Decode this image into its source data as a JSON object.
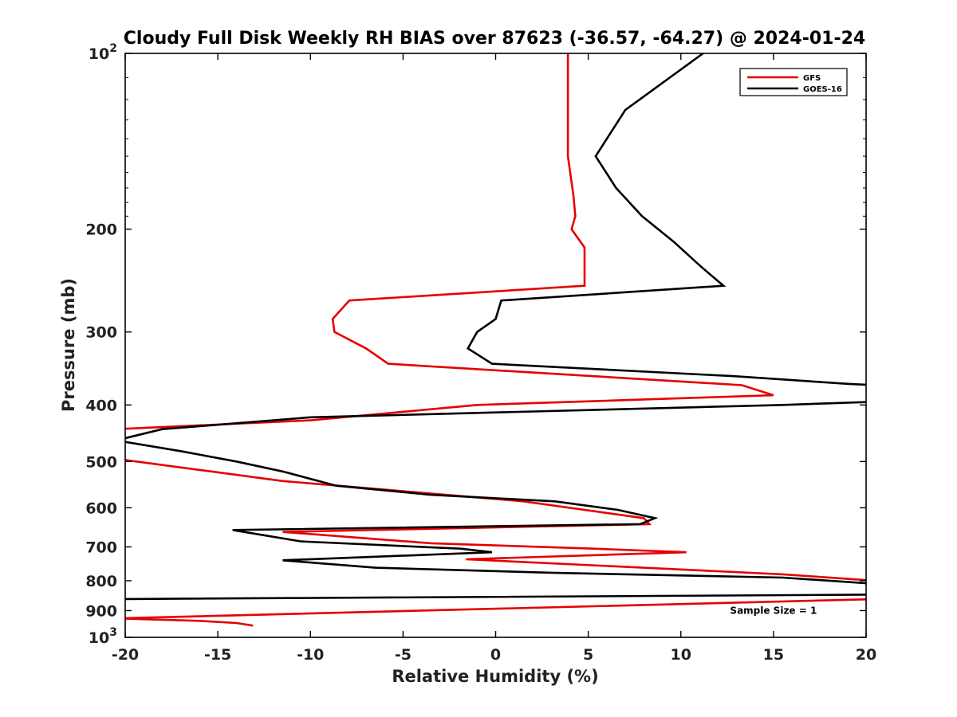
{
  "chart_data": {
    "type": "line",
    "title": "Cloudy Full Disk Weekly RH BIAS over 87623 (-36.57, -64.27) @ 2024-01-24",
    "xlabel": "Relative Humidity (%)",
    "ylabel": "Pressure (mb)",
    "xlim": [
      -20,
      20
    ],
    "ylim": [
      100,
      1000
    ],
    "y_scale": "log",
    "y_reversed": true,
    "x_ticks": [
      -20,
      -15,
      -10,
      -5,
      0,
      5,
      10,
      15,
      20
    ],
    "x_tick_labels": [
      "-20",
      "-15",
      "-10",
      "-5",
      "0",
      "5",
      "10",
      "15",
      "20"
    ],
    "y_ticks": [
      100,
      200,
      300,
      400,
      500,
      600,
      700,
      800,
      900,
      1000
    ],
    "y_tick_labels": [
      {
        "base": "10",
        "exp": "2"
      },
      {
        "base": "200",
        "exp": ""
      },
      {
        "base": "300",
        "exp": ""
      },
      {
        "base": "400",
        "exp": ""
      },
      {
        "base": "500",
        "exp": ""
      },
      {
        "base": "600",
        "exp": ""
      },
      {
        "base": "700",
        "exp": ""
      },
      {
        "base": "800",
        "exp": ""
      },
      {
        "base": "900",
        "exp": ""
      },
      {
        "base": "10",
        "exp": "3"
      }
    ],
    "grid": false,
    "legend_position": "top-right",
    "series": [
      {
        "name": "GFS",
        "color": "#e60000",
        "points": [
          [
            3.9,
            100
          ],
          [
            3.9,
            125
          ],
          [
            3.9,
            150
          ],
          [
            4.2,
            175
          ],
          [
            4.3,
            190
          ],
          [
            4.1,
            200
          ],
          [
            4.8,
            215
          ],
          [
            4.8,
            250
          ],
          [
            -7.9,
            265
          ],
          [
            -8.8,
            285
          ],
          [
            -8.7,
            300
          ],
          [
            -7.0,
            320
          ],
          [
            -5.8,
            340
          ],
          [
            13.3,
            370
          ],
          [
            15.0,
            385
          ],
          [
            -1.0,
            400
          ],
          [
            -10.0,
            425
          ],
          [
            -20.5,
            440
          ],
          [
            -20.0,
            497
          ],
          [
            -11.5,
            540
          ],
          [
            1.5,
            585
          ],
          [
            8.0,
            625
          ],
          [
            8.3,
            640
          ],
          [
            -11.5,
            660
          ],
          [
            -3.5,
            690
          ],
          [
            5.3,
            705
          ],
          [
            10.3,
            715
          ],
          [
            -1.6,
            735
          ],
          [
            15.5,
            780
          ],
          [
            20.5,
            800
          ],
          [
            20.5,
            860
          ],
          [
            -20.5,
            928
          ],
          [
            -16.0,
            937
          ],
          [
            -14.0,
            945
          ],
          [
            -13.1,
            955
          ]
        ]
      },
      {
        "name": "GOES-16",
        "color": "#000000",
        "points": [
          [
            11.2,
            100
          ],
          [
            7.0,
            125
          ],
          [
            5.4,
            150
          ],
          [
            6.5,
            170
          ],
          [
            7.9,
            190
          ],
          [
            9.6,
            210
          ],
          [
            11.1,
            232
          ],
          [
            12.3,
            250
          ],
          [
            0.3,
            265
          ],
          [
            0.0,
            285
          ],
          [
            -1.0,
            300
          ],
          [
            -1.5,
            320
          ],
          [
            -0.2,
            340
          ],
          [
            12.8,
            357
          ],
          [
            19.0,
            368
          ],
          [
            20.5,
            370
          ],
          [
            20.5,
            395
          ],
          [
            15.5,
            400
          ],
          [
            -10.0,
            420
          ],
          [
            -18.0,
            440
          ],
          [
            -20.5,
            460
          ],
          [
            -17.0,
            480
          ],
          [
            -14.0,
            500
          ],
          [
            -11.5,
            520
          ],
          [
            -8.6,
            550
          ],
          [
            -3.5,
            570
          ],
          [
            3.2,
            585
          ],
          [
            6.6,
            605
          ],
          [
            8.6,
            625
          ],
          [
            7.8,
            640
          ],
          [
            -14.2,
            655
          ],
          [
            -10.5,
            685
          ],
          [
            -1.9,
            705
          ],
          [
            -0.2,
            715
          ],
          [
            -11.5,
            738
          ],
          [
            -6.5,
            760
          ],
          [
            3.0,
            775
          ],
          [
            15.5,
            790
          ],
          [
            20.5,
            810
          ],
          [
            20.5,
            845
          ],
          [
            -20.5,
            860
          ]
        ]
      }
    ],
    "annotations": [
      {
        "text": "Sample Size = 1",
        "x": 15,
        "y": 900
      }
    ]
  }
}
